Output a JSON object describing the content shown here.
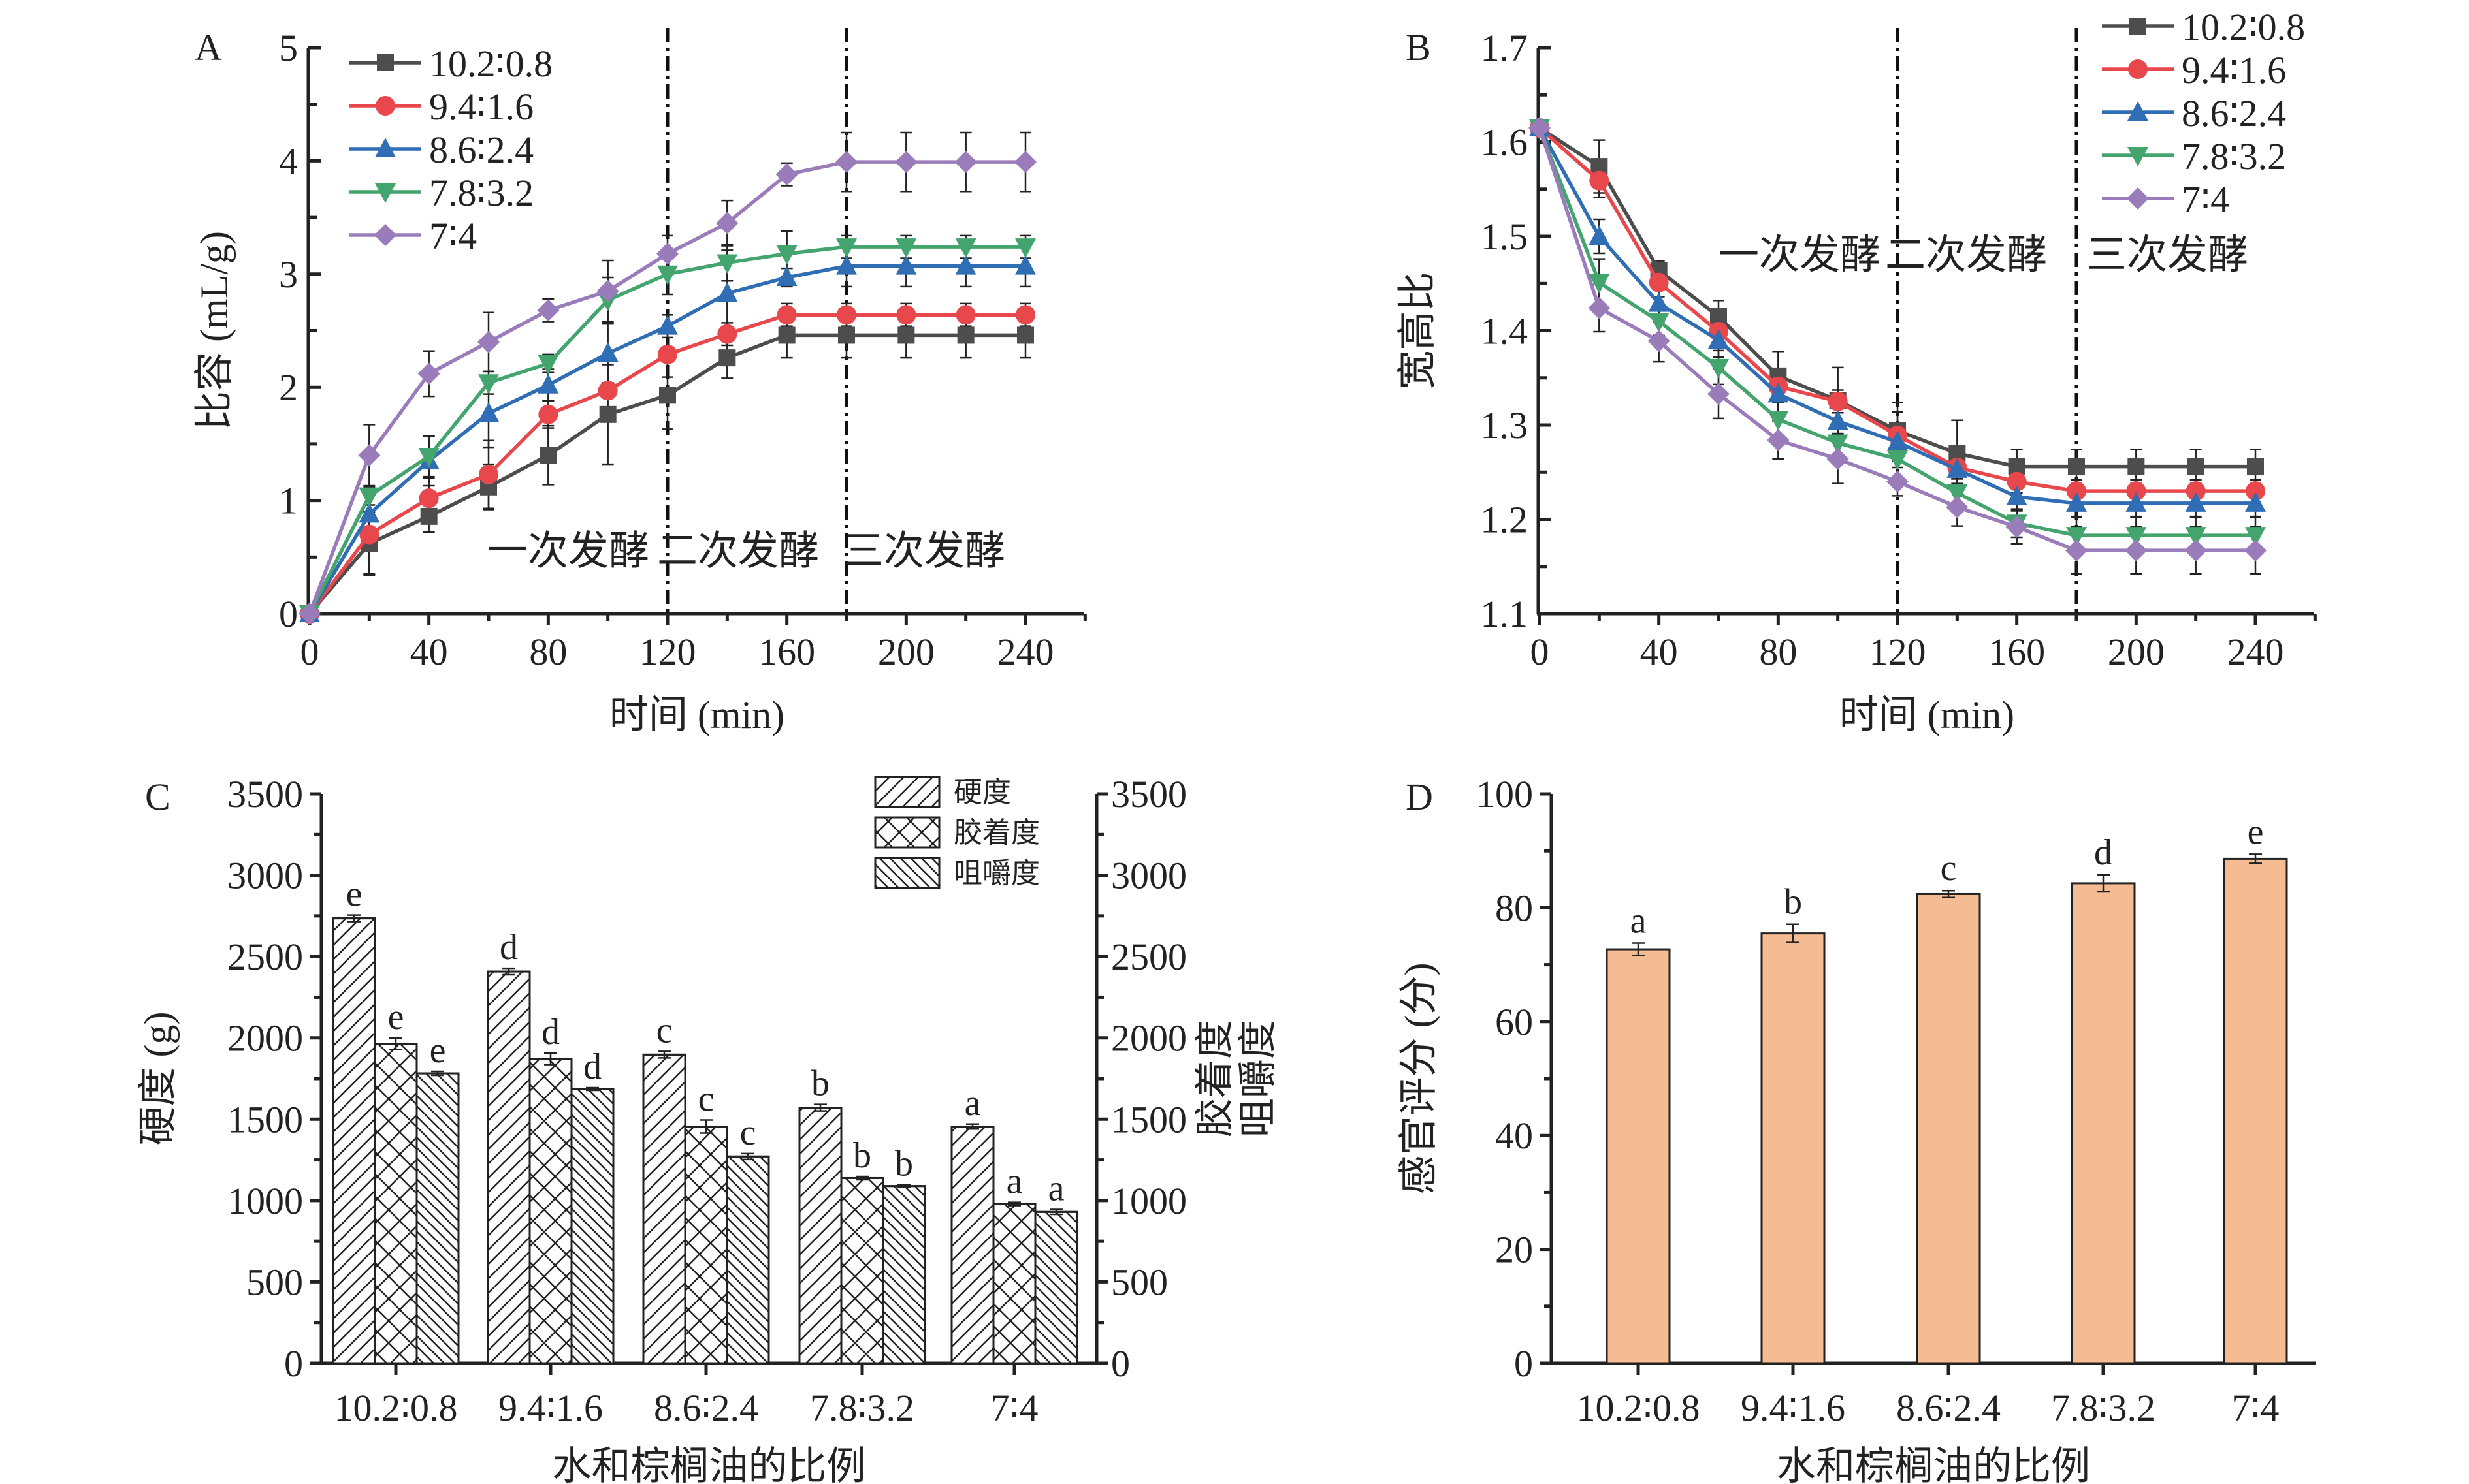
{
  "figure": {
    "panels": [
      "A",
      "B",
      "C",
      "D"
    ]
  },
  "chart_data": [
    {
      "panel": "A",
      "type": "line",
      "title": "",
      "xlabel": "时间 (min)",
      "ylabel": "比容 (mL/g)",
      "xlim": [
        0,
        260
      ],
      "ylim": [
        0,
        5
      ],
      "xticks": [
        0,
        40,
        80,
        120,
        160,
        200,
        240
      ],
      "yticks": [
        0,
        1,
        2,
        3,
        4,
        5
      ],
      "x": [
        0,
        20,
        40,
        60,
        80,
        100,
        120,
        140,
        160,
        180,
        200,
        220,
        240
      ],
      "legend_position": "top-left",
      "vlines": [
        120,
        180
      ],
      "phase_labels": [
        "一次发酵",
        "二次发酵",
        "三次发酵"
      ],
      "phase_label_y": 0.55,
      "series": [
        {
          "name": "10.2∶0.8",
          "color": "#4d4d4d",
          "marker": "square",
          "values": [
            0,
            0.62,
            0.86,
            1.12,
            1.4,
            1.76,
            1.93,
            2.26,
            2.46,
            2.46,
            2.46,
            2.46,
            2.46
          ],
          "errors": [
            0,
            0.28,
            0.14,
            0.2,
            0.26,
            0.44,
            0.3,
            0.18,
            0.2,
            0.2,
            0.2,
            0.2,
            0.2
          ]
        },
        {
          "name": "9.4∶1.6",
          "color": "#e8474c",
          "marker": "circle",
          "values": [
            0,
            0.7,
            1.02,
            1.23,
            1.76,
            1.97,
            2.29,
            2.47,
            2.64,
            2.64,
            2.64,
            2.64,
            2.64
          ],
          "errors": [
            0,
            0.35,
            0.18,
            0.3,
            0.12,
            0.06,
            0.2,
            0.1,
            0.1,
            0.1,
            0.1,
            0.1,
            0.1
          ]
        },
        {
          "name": "8.6∶2.4",
          "color": "#2f6db5",
          "marker": "triangle-up",
          "values": [
            0,
            0.88,
            1.35,
            1.77,
            2.02,
            2.3,
            2.54,
            2.83,
            2.97,
            3.07,
            3.07,
            3.07,
            3.07
          ],
          "errors": [
            0,
            0.2,
            0.22,
            0.3,
            0.14,
            0.26,
            0.1,
            0.38,
            0.08,
            0.18,
            0.18,
            0.18,
            0.18
          ]
        },
        {
          "name": "7.8∶3.2",
          "color": "#44a46e",
          "marker": "triangle-down",
          "values": [
            0,
            1.04,
            1.39,
            2.04,
            2.21,
            2.77,
            3.0,
            3.1,
            3.18,
            3.24,
            3.24,
            3.24,
            3.24
          ],
          "errors": [
            0,
            0.08,
            0.18,
            0.1,
            0.08,
            0.2,
            0.18,
            0.16,
            0.2,
            0.1,
            0.1,
            0.1,
            0.1
          ]
        },
        {
          "name": "7∶4",
          "color": "#9a7cbb",
          "marker": "diamond",
          "values": [
            0,
            1.4,
            2.12,
            2.4,
            2.68,
            2.85,
            3.18,
            3.45,
            3.88,
            3.99,
            3.99,
            3.99,
            3.99
          ],
          "errors": [
            0,
            0.27,
            0.2,
            0.26,
            0.1,
            0.27,
            0.16,
            0.2,
            0.1,
            0.26,
            0.26,
            0.26,
            0.26
          ]
        }
      ]
    },
    {
      "panel": "B",
      "type": "line",
      "title": "",
      "xlabel": "时间 (min)",
      "ylabel": "宽高比",
      "xlim": [
        0,
        260
      ],
      "ylim": [
        1.1,
        1.7
      ],
      "xticks": [
        0,
        40,
        80,
        120,
        160,
        200,
        240
      ],
      "yticks": [
        1.1,
        1.2,
        1.3,
        1.4,
        1.5,
        1.6,
        1.7
      ],
      "x": [
        0,
        20,
        40,
        60,
        80,
        100,
        120,
        140,
        160,
        180,
        200,
        220,
        240
      ],
      "legend_position": "top-right",
      "vlines": [
        120,
        180
      ],
      "phase_labels": [
        "一次发酵",
        "二次发酵",
        "三次发酵"
      ],
      "phase_label_y": 1.48,
      "series": [
        {
          "name": "10.2∶0.8",
          "color": "#4d4d4d",
          "marker": "square",
          "values": [
            1.615,
            1.574,
            1.464,
            1.415,
            1.352,
            1.326,
            1.294,
            1.27,
            1.256,
            1.256,
            1.256,
            1.256,
            1.256
          ],
          "errors": [
            0.005,
            0.028,
            0.01,
            0.017,
            0.026,
            0.035,
            0.03,
            0.035,
            0.018,
            0.018,
            0.018,
            0.018,
            0.018
          ]
        },
        {
          "name": "9.4∶1.6",
          "color": "#e8474c",
          "marker": "circle",
          "values": [
            1.615,
            1.559,
            1.451,
            1.399,
            1.341,
            1.325,
            1.289,
            1.255,
            1.24,
            1.23,
            1.23,
            1.23,
            1.23
          ],
          "errors": [
            0.005,
            0.018,
            0.015,
            0.015,
            0.012,
            0.012,
            0.025,
            0.012,
            0.012,
            0.012,
            0.012,
            0.012,
            0.012
          ]
        },
        {
          "name": "8.6∶2.4",
          "color": "#2f6db5",
          "marker": "triangle-up",
          "values": [
            1.615,
            1.5,
            1.429,
            1.39,
            1.333,
            1.304,
            1.282,
            1.253,
            1.224,
            1.217,
            1.217,
            1.217,
            1.217
          ],
          "errors": [
            0.005,
            0.018,
            0.02,
            0.018,
            0.022,
            0.018,
            0.02,
            0.015,
            0.015,
            0.015,
            0.015,
            0.015,
            0.015
          ]
        },
        {
          "name": "7.8∶3.2",
          "color": "#44a46e",
          "marker": "triangle-down",
          "values": [
            1.615,
            1.451,
            1.41,
            1.361,
            1.306,
            1.281,
            1.264,
            1.228,
            1.196,
            1.183,
            1.183,
            1.183,
            1.183
          ],
          "errors": [
            0.005,
            0.025,
            0.015,
            0.018,
            0.018,
            0.015,
            0.025,
            0.015,
            0.015,
            0.02,
            0.02,
            0.02,
            0.02
          ]
        },
        {
          "name": "7∶4",
          "color": "#9a7cbb",
          "marker": "diamond",
          "values": [
            1.615,
            1.424,
            1.389,
            1.333,
            1.284,
            1.264,
            1.24,
            1.213,
            1.192,
            1.167,
            1.167,
            1.167,
            1.167
          ],
          "errors": [
            0.005,
            0.025,
            0.022,
            0.026,
            0.02,
            0.026,
            0.015,
            0.02,
            0.018,
            0.025,
            0.025,
            0.025,
            0.025
          ]
        }
      ]
    },
    {
      "panel": "C",
      "type": "bar",
      "title": "",
      "xlabel": "水和棕榈油的比例",
      "ylabel": "硬度 (g)",
      "ylabel_right": [
        "胶着度",
        "咀嚼度"
      ],
      "ylim": [
        0,
        3500
      ],
      "yticks": [
        0,
        500,
        1000,
        1500,
        2000,
        2500,
        3000,
        3500
      ],
      "categories": [
        "10.2∶0.8",
        "9.4∶1.6",
        "8.6∶2.4",
        "7.8∶3.2",
        "7∶4"
      ],
      "legend_position": "top-right",
      "series": [
        {
          "name": "硬度",
          "pattern": "diag-right",
          "values": [
            2735,
            2408,
            1897,
            1571,
            1455
          ],
          "errors": [
            20,
            20,
            20,
            20,
            15
          ],
          "letters": [
            "e",
            "d",
            "c",
            "b",
            "a"
          ]
        },
        {
          "name": "胶着度",
          "pattern": "crosshatch",
          "values": [
            1964,
            1871,
            1455,
            1138,
            979
          ],
          "errors": [
            35,
            35,
            40,
            10,
            10
          ],
          "letters": [
            "e",
            "d",
            "c",
            "b",
            "a"
          ]
        },
        {
          "name": "咀嚼度",
          "pattern": "diag-left",
          "values": [
            1782,
            1686,
            1271,
            1089,
            930
          ],
          "errors": [
            12,
            8,
            18,
            8,
            15
          ],
          "letters": [
            "e",
            "d",
            "c",
            "b",
            "a"
          ]
        }
      ]
    },
    {
      "panel": "D",
      "type": "bar",
      "title": "",
      "xlabel": "水和棕榈油的比例",
      "ylabel": "感官评分 (分)",
      "ylim": [
        0,
        100
      ],
      "yticks": [
        0,
        20,
        40,
        60,
        80,
        100
      ],
      "categories": [
        "10.2∶0.8",
        "9.4∶1.6",
        "8.6∶2.4",
        "7.8∶3.2",
        "7∶4"
      ],
      "color": "#f5bc93",
      "values": [
        72.7,
        75.5,
        82.4,
        84.3,
        88.6
      ],
      "errors": [
        1.1,
        1.6,
        0.6,
        1.5,
        0.8
      ],
      "letters": [
        "a",
        "b",
        "c",
        "d",
        "e"
      ]
    }
  ]
}
